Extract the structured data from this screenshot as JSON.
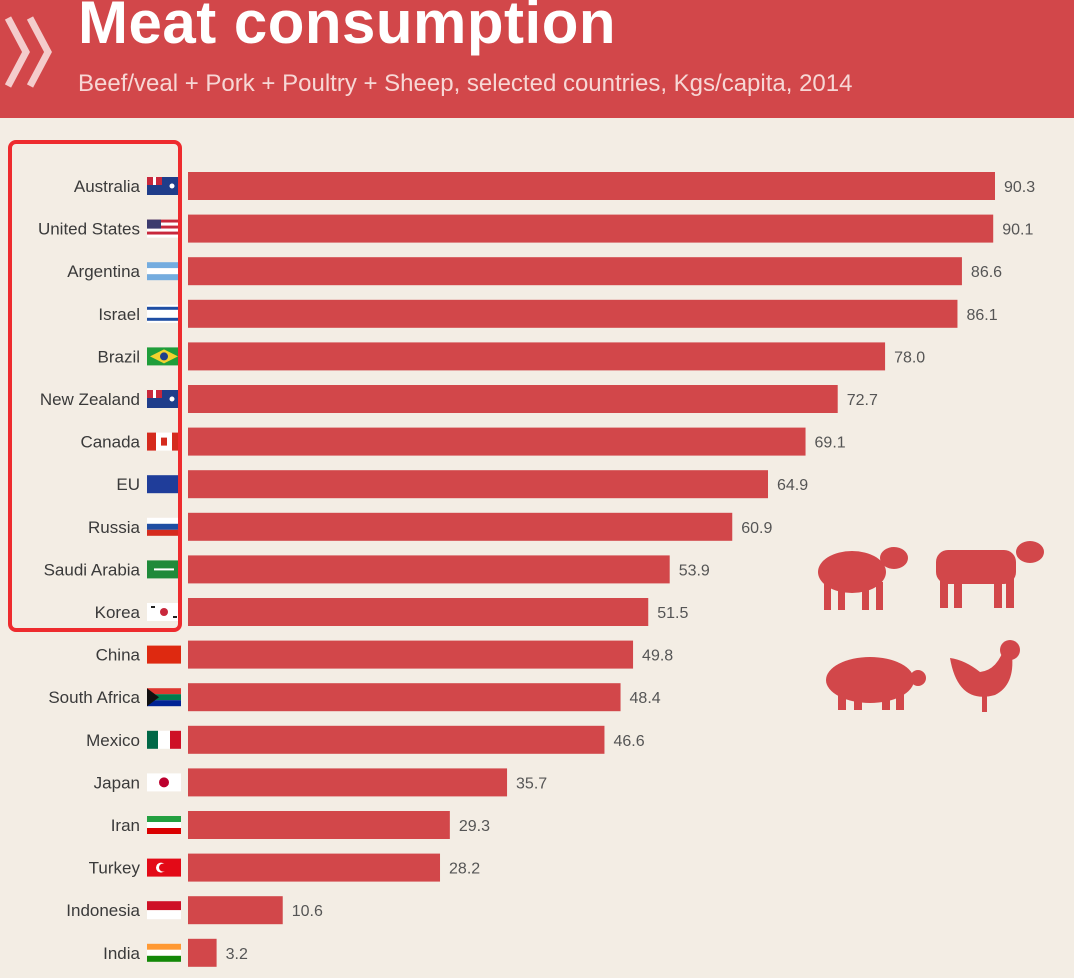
{
  "header": {
    "title": "Meat consumption",
    "subtitle": "Beef/veal + Pork + Poultry + Sheep, selected countries, Kgs/capita, 2014",
    "logo_icon": "double-chevron-icon"
  },
  "colors": {
    "bar": "#d2474a",
    "header": "#d2474a",
    "background": "#f3ede4",
    "highlight": "#ee2b2e"
  },
  "highlight": {
    "from": "Australia",
    "to": "Korea"
  },
  "decorations": [
    "sheep-icon",
    "cow-icon",
    "pig-icon",
    "rooster-icon"
  ],
  "chart_data": {
    "type": "bar",
    "orientation": "horizontal",
    "title": "Meat consumption",
    "subtitle": "Beef/veal + Pork + Poultry + Sheep, selected countries, Kgs/capita, 2014",
    "categories": [
      "Australia",
      "United States",
      "Argentina",
      "Israel",
      "Brazil",
      "New Zealand",
      "Canada",
      "EU",
      "Russia",
      "Saudi Arabia",
      "Korea",
      "China",
      "South Africa",
      "Mexico",
      "Japan",
      "Iran",
      "Turkey",
      "Indonesia",
      "India"
    ],
    "values": [
      90.3,
      90.1,
      86.6,
      86.1,
      78.0,
      72.7,
      69.1,
      64.9,
      60.9,
      53.9,
      51.5,
      49.8,
      48.4,
      46.6,
      35.7,
      29.3,
      28.2,
      10.6,
      3.2
    ],
    "value_labels": [
      "90.3",
      "90.1",
      "86.6",
      "86.1",
      "78.0",
      "72.7",
      "69.1",
      "64.9",
      "60.9",
      "53.9",
      "51.5",
      "49.8",
      "48.4",
      "46.6",
      "35.7",
      "29.3",
      "28.2",
      "10.6",
      "3.2"
    ],
    "flags": [
      "australia-flag-icon",
      "united-states-flag-icon",
      "argentina-flag-icon",
      "israel-flag-icon",
      "brazil-flag-icon",
      "new-zealand-flag-icon",
      "canada-flag-icon",
      "eu-flag-icon",
      "russia-flag-icon",
      "saudi-arabia-flag-icon",
      "korea-flag-icon",
      "china-flag-icon",
      "south-africa-flag-icon",
      "mexico-flag-icon",
      "japan-flag-icon",
      "iran-flag-icon",
      "turkey-flag-icon",
      "indonesia-flag-icon",
      "india-flag-icon"
    ],
    "xlim": [
      0,
      90.3
    ],
    "grid": false,
    "legend": "none"
  }
}
